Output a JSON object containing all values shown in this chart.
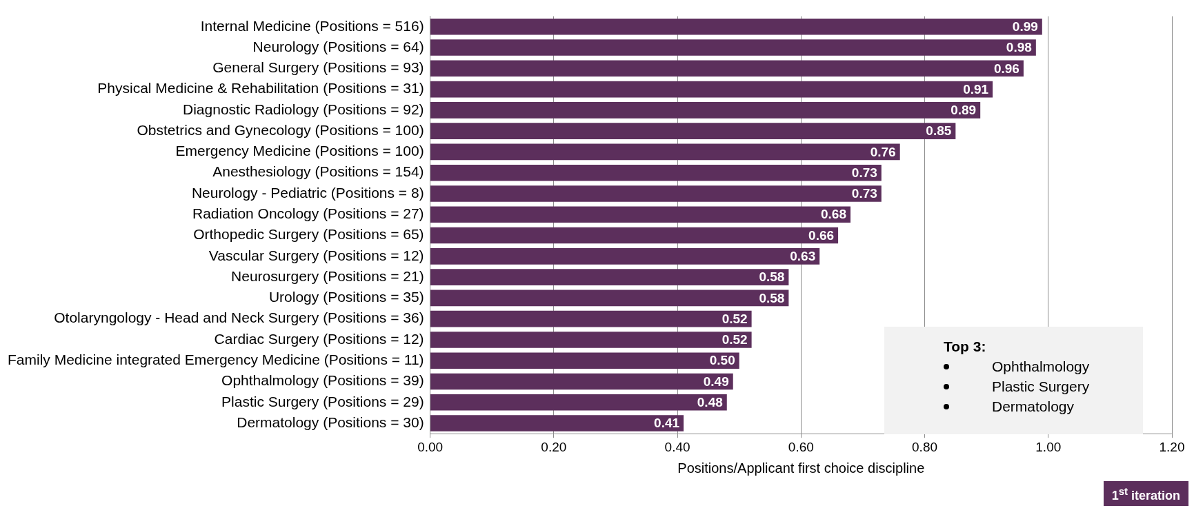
{
  "chart_data": {
    "type": "bar",
    "orientation": "horizontal",
    "xlabel": "Positions/Applicant first choice discipline",
    "categories": [
      "Internal Medicine (Positions = 516)",
      "Neurology (Positions = 64)",
      "General Surgery (Positions = 93)",
      "Physical Medicine & Rehabilitation (Positions = 31)",
      "Diagnostic Radiology (Positions = 92)",
      "Obstetrics and Gynecology (Positions = 100)",
      "Emergency Medicine (Positions = 100)",
      "Anesthesiology (Positions = 154)",
      "Neurology - Pediatric (Positions = 8)",
      "Radiation Oncology (Positions = 27)",
      "Orthopedic Surgery (Positions = 65)",
      "Vascular Surgery (Positions = 12)",
      "Neurosurgery (Positions = 21)",
      "Urology (Positions = 35)",
      "Otolaryngology - Head and Neck Surgery (Positions = 36)",
      "Cardiac Surgery (Positions = 12)",
      "Family Medicine integrated Emergency Medicine (Positions = 11)",
      "Ophthalmology (Positions = 39)",
      "Plastic Surgery (Positions = 29)",
      "Dermatology (Positions = 30)"
    ],
    "values": [
      0.99,
      0.98,
      0.96,
      0.91,
      0.89,
      0.85,
      0.76,
      0.73,
      0.73,
      0.68,
      0.66,
      0.63,
      0.58,
      0.58,
      0.52,
      0.52,
      0.5,
      0.49,
      0.48,
      0.41
    ],
    "value_labels": [
      "0.99",
      "0.98",
      "0.96",
      "0.91",
      "0.89",
      "0.85",
      "0.76",
      "0.73",
      "0.73",
      "0.68",
      "0.66",
      "0.63",
      "0.58",
      "0.58",
      "0.52",
      "0.52",
      "0.50",
      "0.49",
      "0.48",
      "0.41"
    ],
    "color": "#5c2f5c",
    "xlim": [
      0,
      1.2
    ],
    "xticks": [
      {
        "value": 0,
        "label": "0.00"
      },
      {
        "value": 0.2,
        "label": "0.20"
      },
      {
        "value": 0.4,
        "label": "0.40"
      },
      {
        "value": 0.6,
        "label": "0.60"
      },
      {
        "value": 0.8,
        "label": "0.80"
      },
      {
        "value": 1,
        "label": "1.00"
      },
      {
        "value": 1.2,
        "label": "1.20"
      }
    ],
    "grid": "x",
    "annotations": [
      "Top 3:",
      "Ophthalmology",
      "Plastic Surgery",
      "Dermatology",
      "1$^{st}$ iteration"
    ]
  }
}
